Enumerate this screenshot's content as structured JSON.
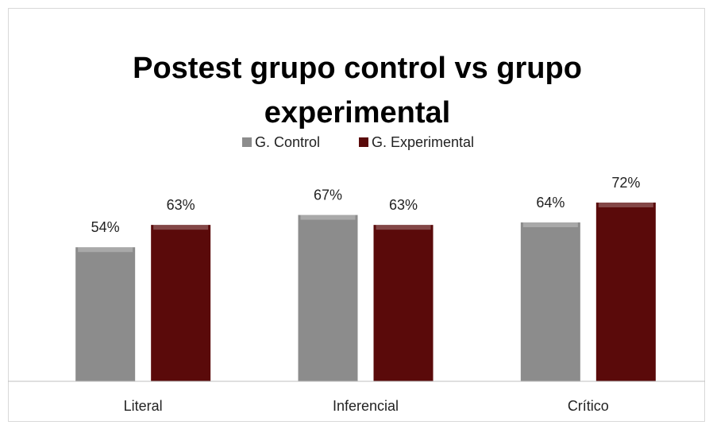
{
  "chart_data": {
    "type": "bar",
    "title": "Postest grupo control vs grupo experimental",
    "categories": [
      "Literal",
      "Inferencial",
      "Crítico"
    ],
    "series": [
      {
        "name": "G. Control",
        "color": "#8c8c8c",
        "values": [
          54,
          67,
          64
        ],
        "value_labels": [
          "54%",
          "67%",
          "64%"
        ]
      },
      {
        "name": "G. Experimental",
        "color": "#5a0a0a",
        "values": [
          63,
          63,
          72
        ],
        "value_labels": [
          "63%",
          "63%",
          "72%"
        ]
      }
    ],
    "ylim": [
      0,
      80
    ],
    "legend": "top"
  }
}
